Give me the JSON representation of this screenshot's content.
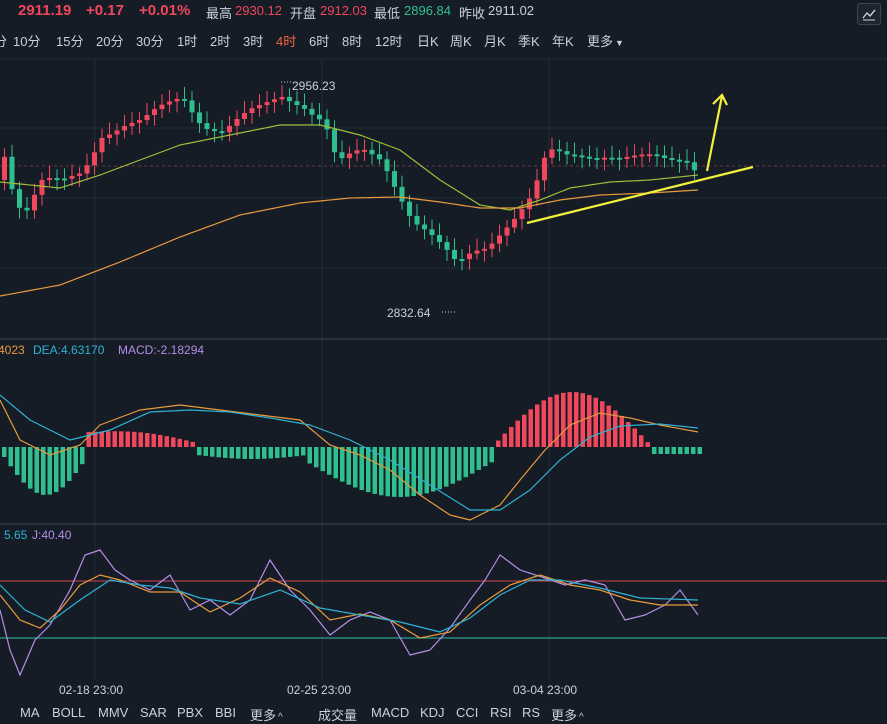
{
  "quote": {
    "last": "2911.19",
    "change": "+0.17",
    "change_pct": "+0.01%",
    "high_label": "最高",
    "high": "2930.12",
    "open_label": "开盘",
    "open": "2912.03",
    "low_label": "最低",
    "low": "2896.84",
    "prev_label": "昨收",
    "prev": "2911.02"
  },
  "timeframes": {
    "items": [
      "分",
      "10分",
      "15分",
      "20分",
      "30分",
      "1时",
      "2时",
      "3时",
      "4时",
      "6时",
      "8时",
      "12时",
      "日K",
      "周K",
      "月K",
      "季K",
      "年K",
      "更多"
    ],
    "active": "4时"
  },
  "annotations": {
    "high_price": "2956.23",
    "low_price": "2832.64"
  },
  "macd": {
    "dif_partial": "4023",
    "dea": "DEA:4.63170",
    "macd": "MACD:-2.18294"
  },
  "kdj": {
    "d_partial": "5.65",
    "j": "J:40.40"
  },
  "x_axis": [
    "02-18 23:00",
    "02-25 23:00",
    "03-04 23:00"
  ],
  "bottom_tabs": {
    "left": [
      "MA",
      "BOLL",
      "MMV",
      "SAR",
      "PBX",
      "BBI",
      "更多"
    ],
    "right": [
      "成交量",
      "MACD",
      "KDJ",
      "CCI",
      "RSI",
      "RS",
      "更多"
    ]
  },
  "colors": {
    "up": "#f0475c",
    "down": "#2fbf8f",
    "ma_short": "#9fbf3a",
    "ma_long": "#e89a3c",
    "trendline": "#f2f23c",
    "dea": "#2fb3d6",
    "macd_label": "#b48ee6",
    "k_line": "#e89a3c",
    "d_line": "#2fb3d6",
    "j_line": "#b48ee6"
  }
}
